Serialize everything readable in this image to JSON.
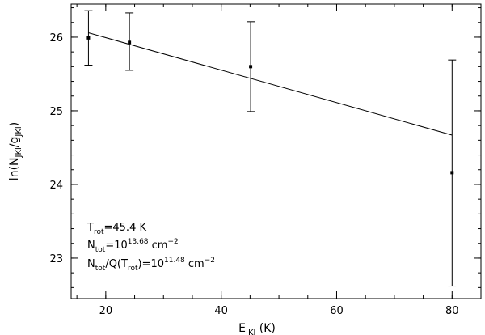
{
  "chart_data": {
    "type": "scatter",
    "xlim": [
      14,
      85
    ],
    "ylim": [
      22.45,
      26.45
    ],
    "x_ticks": [
      20,
      40,
      60,
      80
    ],
    "y_ticks": [
      23,
      24,
      25,
      26
    ],
    "x_minor_step": 5,
    "y_minor_step": 0.2,
    "xlabel": {
      "main": "E",
      "sub": "JKl",
      "tail": " (K)"
    },
    "ylabel": {
      "pre": "ln(N",
      "sub1": "JKl",
      "mid": "/g",
      "sub2": "JKl",
      "post": ")"
    },
    "points": [
      {
        "x": 17.0,
        "y": 25.99,
        "err_low": 25.62,
        "err_high": 26.36
      },
      {
        "x": 24.1,
        "y": 25.93,
        "err_low": 25.55,
        "err_high": 26.33
      },
      {
        "x": 45.1,
        "y": 25.6,
        "err_low": 24.99,
        "err_high": 26.21
      },
      {
        "x": 80.0,
        "y": 24.16,
        "err_low": 22.62,
        "err_high": 25.69
      }
    ],
    "fit_line": {
      "x": [
        17.0,
        80.0
      ],
      "y": [
        26.06,
        24.67
      ]
    },
    "annotations": [
      {
        "base": "T",
        "sub": "rot",
        "rest": "=45.4 K"
      },
      {
        "base": "N",
        "sub": "tot",
        "rest": "=10",
        "sup": "13.68",
        "unit": " cm",
        "unit_sup": "−2"
      },
      {
        "base": "N",
        "sub": "tot",
        "rest": "/Q(T",
        "sub2": "rot",
        "rest2": ")=10",
        "sup": "11.48",
        "unit": " cm",
        "unit_sup": "−2"
      }
    ],
    "colors": {
      "axes": "#000000",
      "markers": "#000000",
      "line": "#000000"
    }
  }
}
